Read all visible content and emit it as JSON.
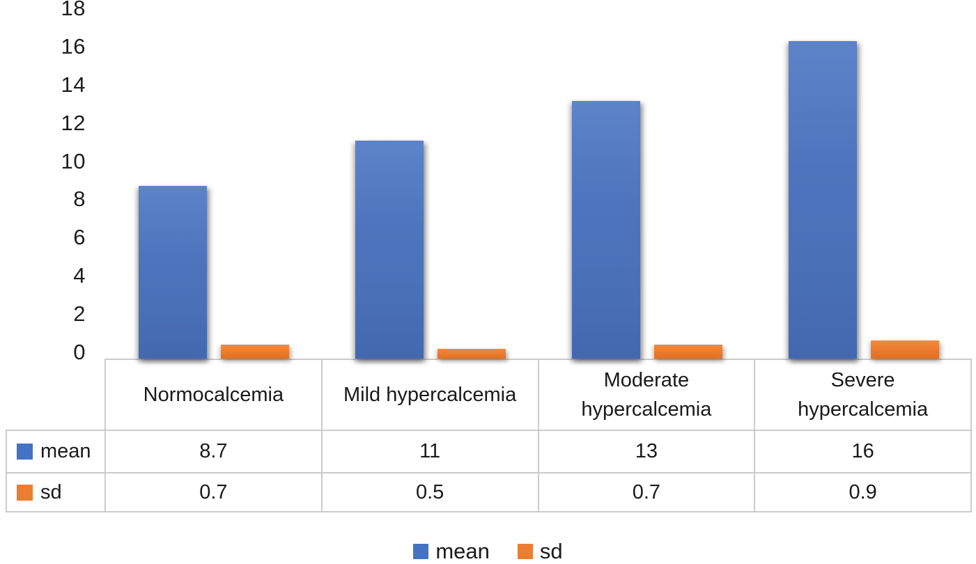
{
  "figure": {
    "background": "#ffffff",
    "border_color": "#cbcbcb",
    "text_color": "#1a1a1a"
  },
  "chart_data": {
    "type": "bar",
    "title": "",
    "xlabel": "",
    "ylabel": "",
    "categories": [
      "Normocalcemia",
      "Mild hypercalcemia",
      "Moderate hypercalcemia",
      "Severe hypercalcemia"
    ],
    "series": [
      {
        "name": "mean",
        "color": "#4472C4",
        "values": [
          8.7,
          11,
          13,
          16
        ]
      },
      {
        "name": "sd",
        "color": "#ED7D31",
        "values": [
          0.7,
          0.5,
          0.7,
          0.9
        ]
      }
    ],
    "ylim": [
      0,
      18
    ],
    "ytick_step": 2,
    "y_tick_labels": [
      "0",
      "2",
      "4",
      "6",
      "8",
      "10",
      "12",
      "14",
      "16",
      "18"
    ],
    "grid": false,
    "plot_background": "#ffffff",
    "legend_position": "bottom",
    "has_data_table": true
  }
}
